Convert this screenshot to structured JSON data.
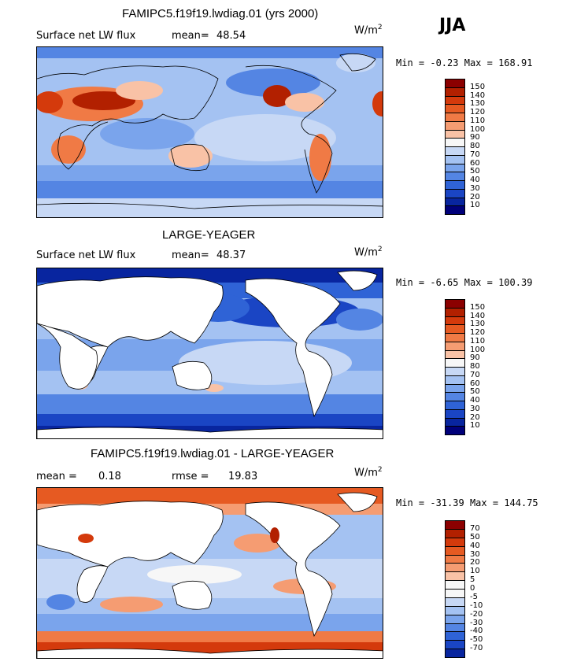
{
  "season": "JJA",
  "panels": [
    {
      "title": "FAMIPC5.f19f19.lwdiag.01 (yrs 2000)",
      "left_label": "Surface net LW flux",
      "stat1_label": "mean=",
      "stat1_value": "48.54",
      "stat2_label": "",
      "stat2_value": "",
      "units": "W/m",
      "units_exp": "2",
      "min_label": "Min =",
      "min_value": "-0.23",
      "max_label": "Max =",
      "max_value": "168.91",
      "colorbar_labels": [
        "150",
        "140",
        "130",
        "120",
        "110",
        "100",
        "90",
        "80",
        "70",
        "60",
        "50",
        "40",
        "30",
        "20",
        "10"
      ]
    },
    {
      "title": "LARGE-YEAGER",
      "left_label": "Surface net LW flux",
      "stat1_label": "mean=",
      "stat1_value": "48.37",
      "stat2_label": "",
      "stat2_value": "",
      "units": "W/m",
      "units_exp": "2",
      "min_label": "Min =",
      "min_value": "-6.65",
      "max_label": "Max =",
      "max_value": "100.39",
      "colorbar_labels": [
        "150",
        "140",
        "130",
        "120",
        "110",
        "100",
        "90",
        "80",
        "70",
        "60",
        "50",
        "40",
        "30",
        "20",
        "10"
      ]
    },
    {
      "title": "FAMIPC5.f19f19.lwdiag.01 - LARGE-YEAGER",
      "left_label": "",
      "stat1_label": "mean =",
      "stat1_value": "0.18",
      "stat2_label": "rmse =",
      "stat2_value": "19.83",
      "units": "W/m",
      "units_exp": "2",
      "min_label": "Min =",
      "min_value": "-31.39",
      "max_label": "Max =",
      "max_value": "144.75",
      "colorbar_labels": [
        "70",
        "50",
        "40",
        "30",
        "20",
        "10",
        "5",
        "0",
        "-5",
        "-10",
        "-20",
        "-30",
        "-40",
        "-50",
        "-70"
      ]
    }
  ],
  "colors": {
    "abs_scale": [
      "#8b0000",
      "#b22000",
      "#d43a0c",
      "#e65a22",
      "#f07a45",
      "#f59c72",
      "#f9c2a6",
      "#f7f7f7",
      "#c7d8f5",
      "#a4c2f2",
      "#7aa4ec",
      "#5485e3",
      "#2f63d6",
      "#1a45c4",
      "#08259f",
      "#00007a"
    ],
    "diff_scale": [
      "#8b0000",
      "#b22000",
      "#d43a0c",
      "#e65a22",
      "#f07a45",
      "#f59c72",
      "#f9c2a6",
      "#f7f7f7",
      "#f7f7f7",
      "#c7d8f5",
      "#a4c2f2",
      "#7aa4ec",
      "#5485e3",
      "#2f63d6",
      "#1a45c4",
      "#08259f",
      "#00007a"
    ]
  },
  "chart_data": [
    {
      "type": "heatmap",
      "title": "FAMIPC5.f19f19.lwdiag.01 (yrs 2000)",
      "variable": "Surface net LW flux",
      "units": "W/m2",
      "season": "JJA",
      "mean": 48.54,
      "min": -0.23,
      "max": 168.91,
      "contour_levels": [
        10,
        20,
        30,
        40,
        50,
        60,
        70,
        80,
        90,
        100,
        110,
        120,
        130,
        140,
        150
      ]
    },
    {
      "type": "heatmap",
      "title": "LARGE-YEAGER",
      "variable": "Surface net LW flux",
      "units": "W/m2",
      "season": "JJA",
      "mean": 48.37,
      "min": -6.65,
      "max": 100.39,
      "contour_levels": [
        10,
        20,
        30,
        40,
        50,
        60,
        70,
        80,
        90,
        100,
        110,
        120,
        130,
        140,
        150
      ]
    },
    {
      "type": "heatmap",
      "title": "FAMIPC5.f19f19.lwdiag.01 - LARGE-YEAGER",
      "units": "W/m2",
      "season": "JJA",
      "mean": 0.18,
      "rmse": 19.83,
      "min": -31.39,
      "max": 144.75,
      "contour_levels": [
        -70,
        -50,
        -40,
        -30,
        -20,
        -10,
        -5,
        0,
        5,
        10,
        20,
        30,
        40,
        50,
        70
      ]
    }
  ]
}
